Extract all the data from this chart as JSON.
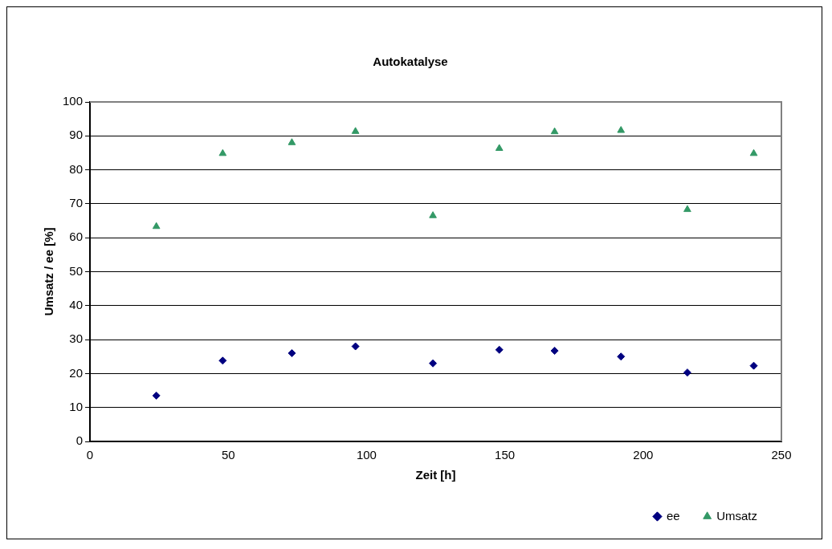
{
  "chart_data": {
    "type": "scatter",
    "title": "Autokatalyse",
    "xlabel": "Zeit [h]",
    "ylabel": "Umsatz / ee [%]",
    "x": [
      24,
      48,
      73,
      96,
      124,
      148,
      168,
      192,
      216,
      240
    ],
    "series": [
      {
        "name": "ee",
        "color": "#000080",
        "marker": "diamond",
        "values": [
          13.5,
          23.8,
          26,
          28,
          23,
          27,
          26.7,
          25,
          20.3,
          22.3
        ]
      },
      {
        "name": "Umsatz",
        "color": "#339966",
        "marker": "triangle",
        "values": [
          63.3,
          84.8,
          88,
          91.3,
          66.5,
          86.3,
          91.2,
          91.6,
          68.3,
          84.8
        ]
      }
    ],
    "xlim": [
      0,
      250
    ],
    "xticks": [
      0,
      50,
      100,
      150,
      200,
      250
    ],
    "ylim": [
      0,
      100
    ],
    "yticks": [
      0,
      10,
      20,
      30,
      40,
      50,
      60,
      70,
      80,
      90,
      100
    ],
    "grid": "y",
    "legend": "bottom right"
  }
}
